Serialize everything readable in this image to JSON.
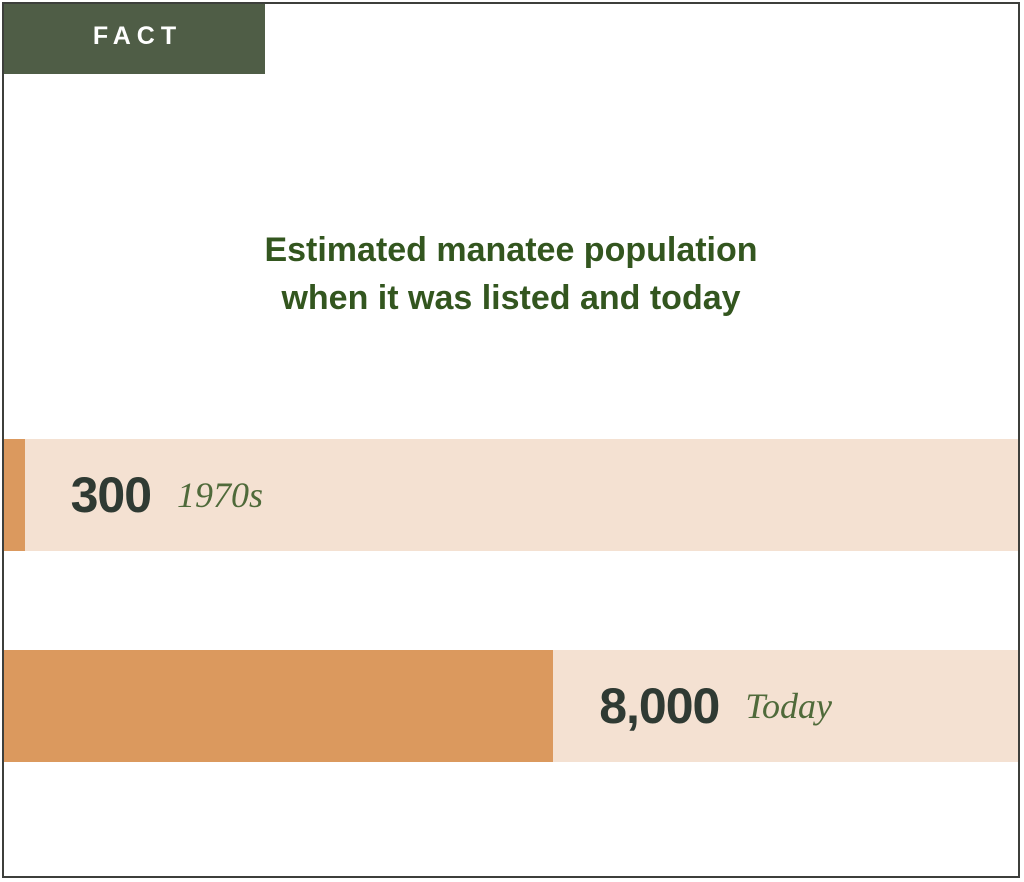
{
  "tab": {
    "label": "FACT"
  },
  "colors": {
    "tab_bg": "#4f5d46",
    "title": "#33561f",
    "bar_fill": "#db995e",
    "bar_track": "#f4e1d2",
    "value_text": "#2f3a33",
    "period_text": "#4f6a3a",
    "border": "#3d3f3b"
  },
  "chart_data": {
    "type": "bar",
    "orientation": "horizontal",
    "title_lines": [
      "Estimated manatee population",
      "when it was listed and today"
    ],
    "categories": [
      "1970s",
      "Today"
    ],
    "values": [
      300,
      8000
    ],
    "value_labels": [
      "300",
      "8,000"
    ],
    "xlim": [
      0,
      14800
    ],
    "grid": false,
    "legend": "none"
  }
}
